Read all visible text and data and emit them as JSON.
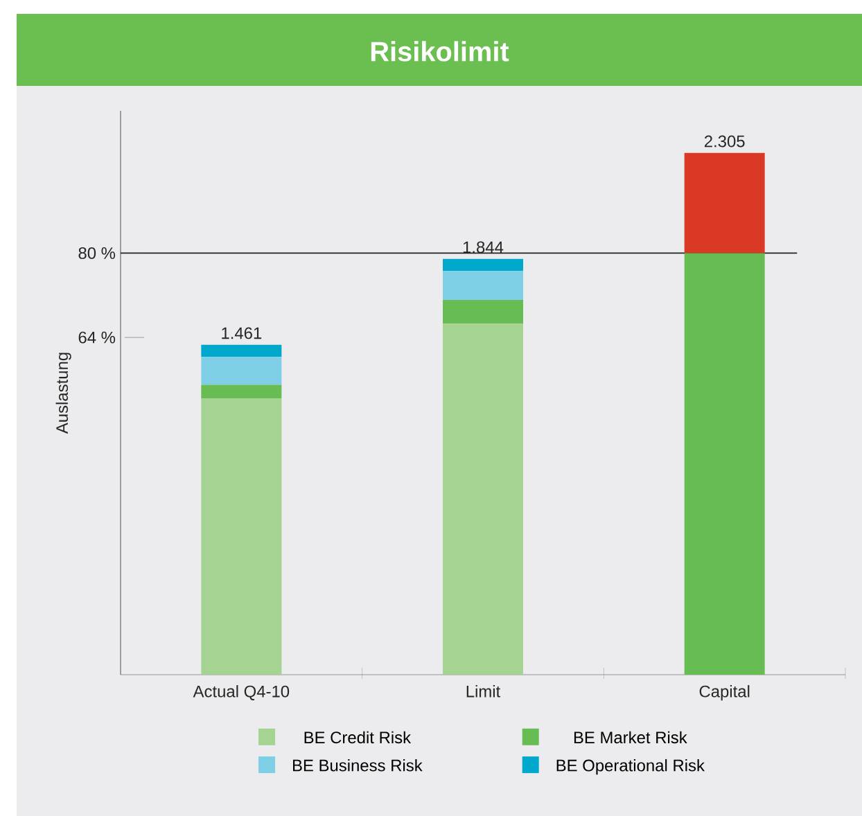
{
  "chart_data": {
    "type": "bar",
    "title": "Risikolimit",
    "ylabel": "Auslastung",
    "categories": [
      "Actual Q4-10",
      "Limit",
      "Capital"
    ],
    "stacked": true,
    "series": [
      {
        "name": "BE Credit Risk",
        "color": "#a5d391",
        "values": [
          52.4,
          66.6,
          null
        ]
      },
      {
        "name": "BE Market Risk",
        "color": "#67bd53",
        "values": [
          2.6,
          4.5,
          80
        ]
      },
      {
        "name": "BE Business Risk",
        "color": "#7ecfe6",
        "values": [
          5.3,
          5.5,
          null
        ]
      },
      {
        "name": "BE Operational Risk",
        "color": "#00a8cc",
        "values": [
          2.3,
          2.3,
          null
        ]
      },
      {
        "color": "#da3a25",
        "values": [
          null,
          null,
          19
        ]
      }
    ],
    "ylim": [
      0,
      107
    ],
    "yticks": [
      {
        "value": 64,
        "label": "64 %"
      },
      {
        "value": 80,
        "label": "80 %"
      }
    ],
    "ref_lines": [
      {
        "axis": "y",
        "value": 80,
        "color": "#222222"
      }
    ],
    "annotations": [
      {
        "text": "1.461",
        "x": "Actual Q4-10",
        "y": 62.6
      },
      {
        "text": "1.844",
        "x": "Limit",
        "y": 78.9
      },
      {
        "text": "2.305",
        "x": "Capital",
        "y": 99
      }
    ],
    "legend": "bottom"
  }
}
